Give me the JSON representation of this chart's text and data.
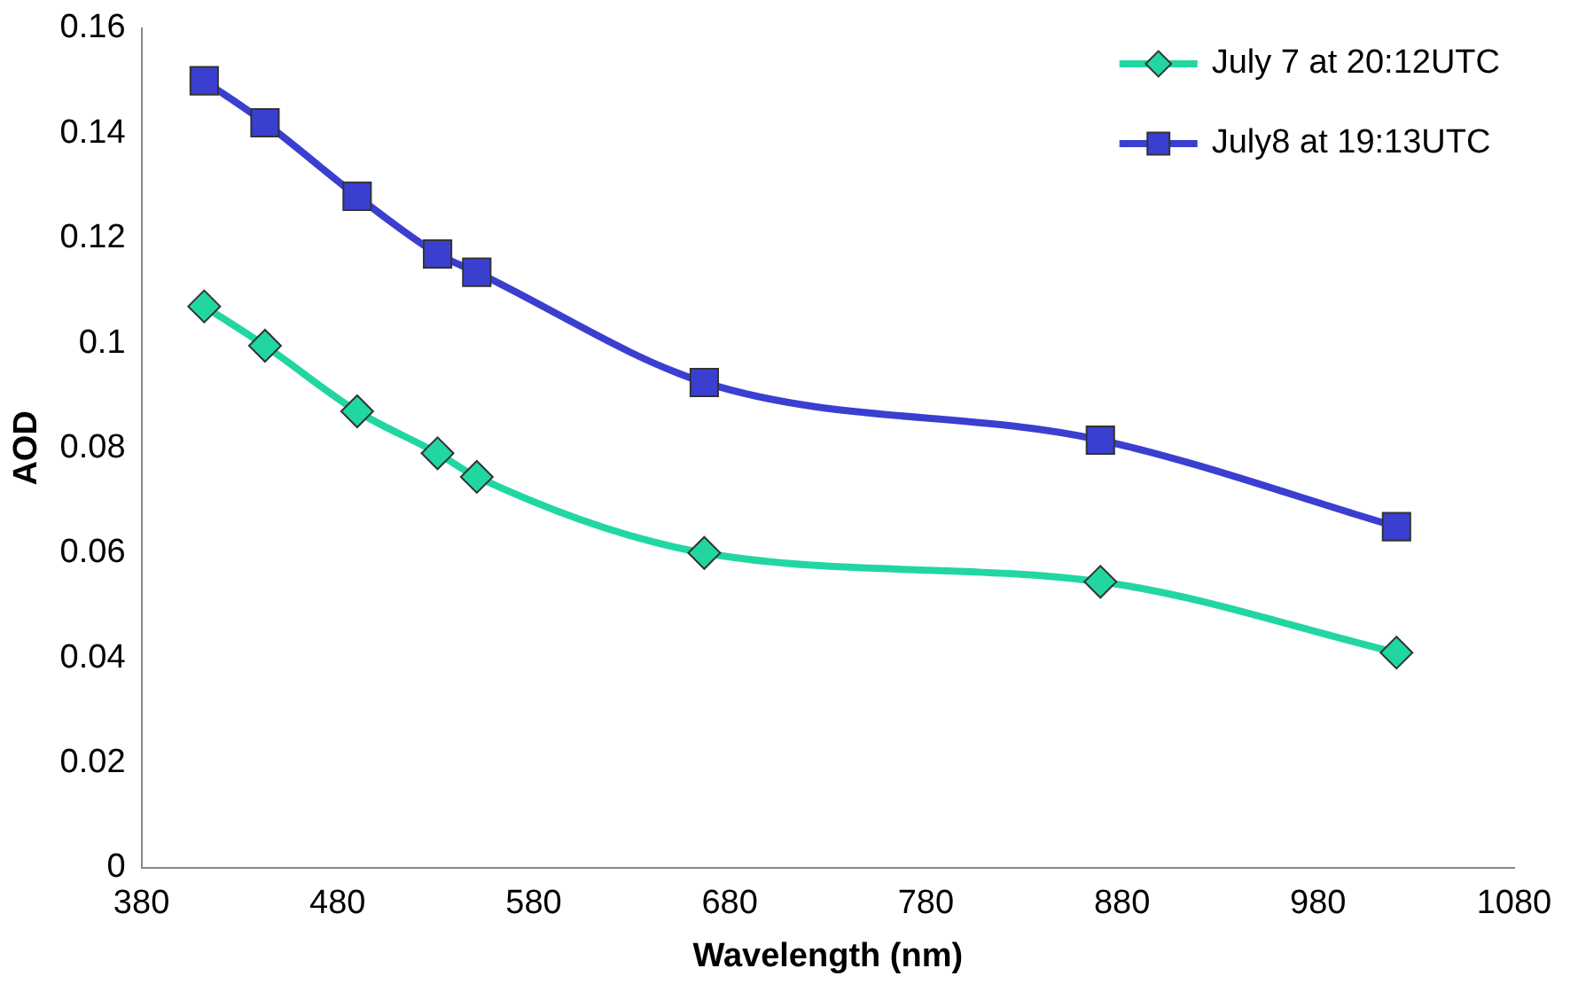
{
  "chart_data": {
    "type": "line",
    "xlabel": "Wavelength (nm)",
    "ylabel": "AOD",
    "x": [
      412,
      443,
      490,
      531,
      551,
      667,
      869,
      1020
    ],
    "series": [
      {
        "name": "July 7 at 20:12UTC",
        "color": "#22d6a2",
        "marker": "diamond",
        "values": [
          0.107,
          0.0995,
          0.087,
          0.079,
          0.0745,
          0.06,
          0.0545,
          0.041
        ]
      },
      {
        "name": "July8 at 19:13UTC",
        "color": "#3a3fd0",
        "marker": "square",
        "values": [
          0.15,
          0.142,
          0.128,
          0.117,
          0.1135,
          0.0925,
          0.0815,
          0.065
        ]
      }
    ],
    "xlim": [
      380,
      1080
    ],
    "xticks": [
      380,
      480,
      580,
      680,
      780,
      880,
      980,
      1080
    ],
    "ylim": [
      0,
      0.16
    ],
    "yticks": [
      0,
      0.02,
      0.04,
      0.06,
      0.08,
      0.1,
      0.12,
      0.14,
      0.16
    ],
    "grid": false,
    "legend": "top right",
    "line_style": "solid"
  }
}
